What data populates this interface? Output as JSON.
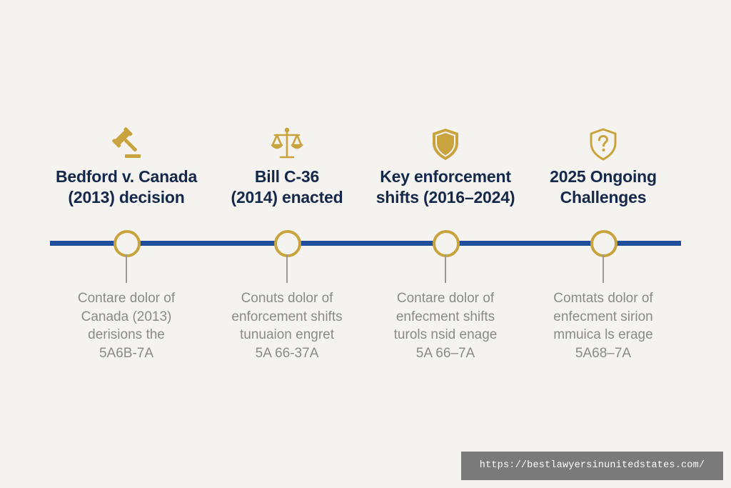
{
  "colors": {
    "background": "#f4f3ef",
    "timeline": "#1f4f9a",
    "accent_gold": "#c9a43e",
    "title_text": "#15284a",
    "description_text": "#8a8a8a"
  },
  "timeline": {
    "events": [
      {
        "icon": "gavel-icon",
        "title": "Bedford v. Canada\n(2013) decision",
        "description": "Contare dolor of\nCanada (2013)\nderisions the\n5A6B-7A"
      },
      {
        "icon": "scales-icon",
        "title": "Bill C-36\n(2014) enacted",
        "description": "Conuts dolor of\nenforcement shifts\ntunuaion engret\n5A 66-37A"
      },
      {
        "icon": "shield-icon",
        "title": "Key enforcement\nshifts (2016–2024)",
        "description": "Contare dolor of\nenfecment shifts\nturols nsid enage\n5A 66–7A"
      },
      {
        "icon": "shield-question-icon",
        "title": "2025 Ongoing\nChallenges",
        "description": "Comtats dolor of\nenfecment sirion\nmmuica ls erage\n5A68–7A"
      }
    ]
  },
  "watermark": {
    "url": "https://bestlawyersinunitedstates.com/"
  }
}
